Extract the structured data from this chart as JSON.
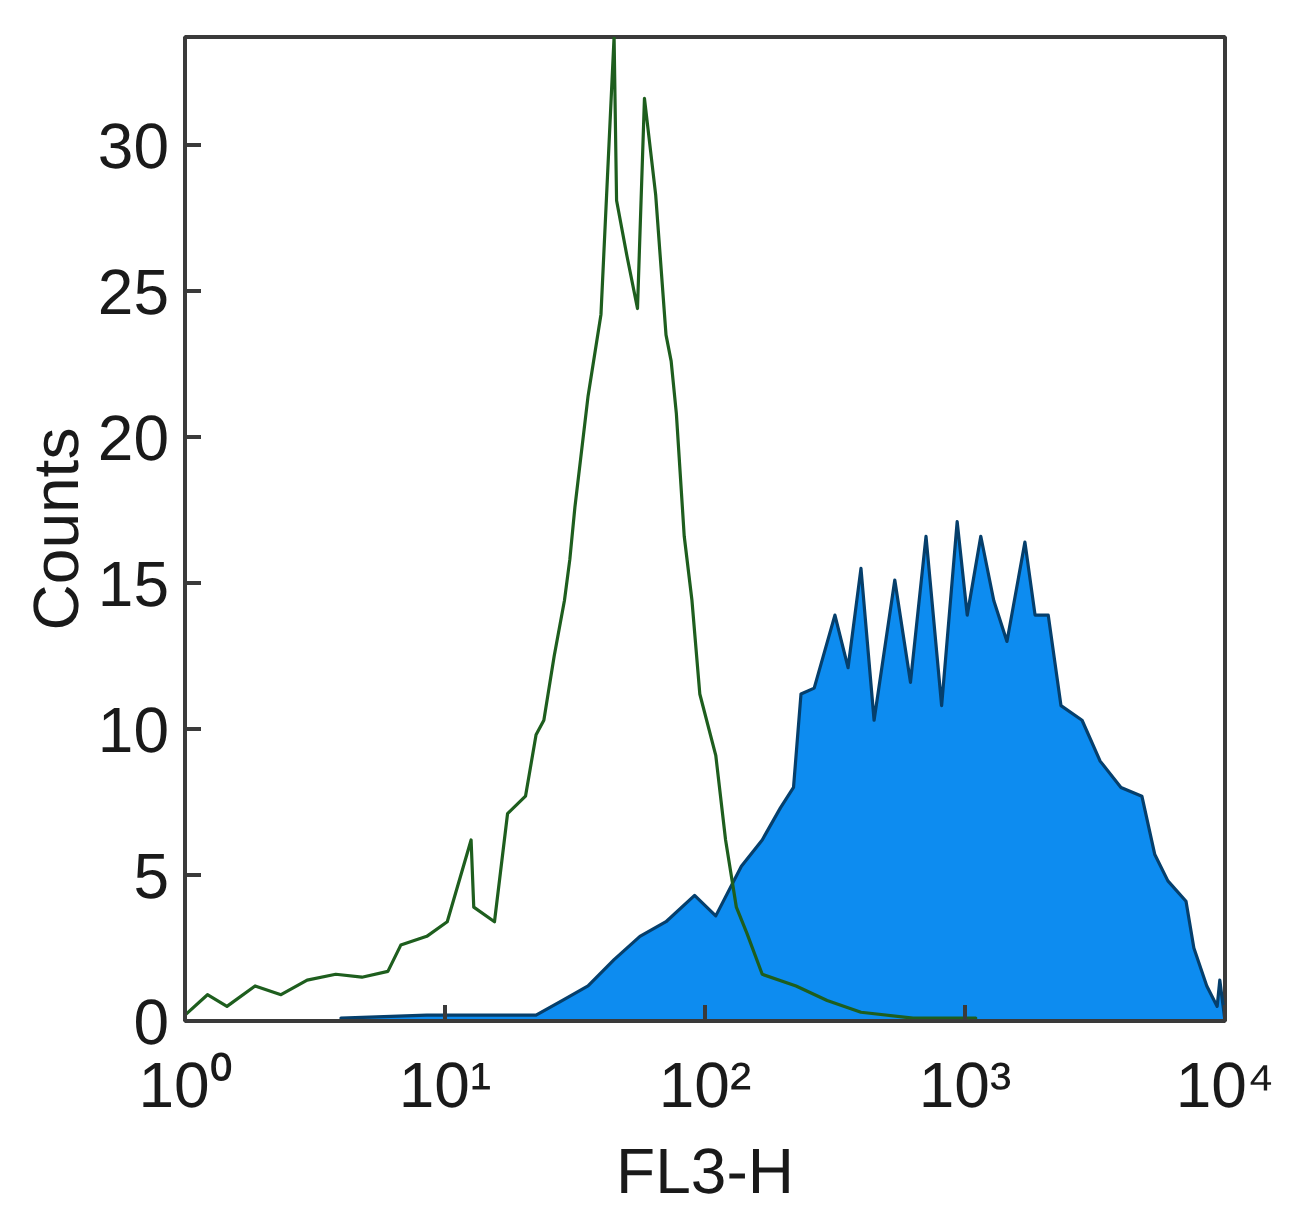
{
  "chart_data": {
    "type": "line",
    "xlabel": "FL3-H",
    "ylabel": "Counts",
    "log": "x",
    "xlim": [
      1,
      10000
    ],
    "ylim": [
      0,
      33.7
    ],
    "xticks": [
      {
        "value": 1,
        "label": "10⁰"
      },
      {
        "value": 10,
        "label": "10¹"
      },
      {
        "value": 100,
        "label": "10²"
      },
      {
        "value": 1000,
        "label": "10³"
      },
      {
        "value": 10000,
        "label": "10⁴"
      }
    ],
    "yticks": [
      0,
      5,
      10,
      15,
      20,
      25,
      30
    ],
    "grid": false,
    "marker": "none",
    "series": [
      {
        "type": "area",
        "color": "#0d8cf0",
        "x": [
          3.98,
          8.51,
          22.4,
          28.2,
          35.5,
          44.7,
          56.2,
          70.8,
          91.2,
          110,
          138,
          166,
          195,
          219,
          234,
          263,
          316,
          355,
          398,
          447,
          537,
          617,
          708,
          813,
          933,
          1020,
          1150,
          1290,
          1450,
          1700,
          1860,
          2090,
          2340,
          2820,
          3310,
          3980,
          4790,
          5370,
          6030,
          7080,
          7590,
          8510,
          9330,
          9550,
          10000
        ],
        "values": [
          0.1,
          0.2,
          0.2,
          0.7,
          1.2,
          2.1,
          2.9,
          3.4,
          4.3,
          3.6,
          5.3,
          6.2,
          7.3,
          8.0,
          11.2,
          11.4,
          13.9,
          12.1,
          15.5,
          10.3,
          15.1,
          11.6,
          16.6,
          10.8,
          17.1,
          13.9,
          16.6,
          14.4,
          13.0,
          16.4,
          13.9,
          13.9,
          10.8,
          10.3,
          8.9,
          8.0,
          7.7,
          5.7,
          4.8,
          4.1,
          2.5,
          1.2,
          0.5,
          1.4,
          0
        ]
      },
      {
        "color": "#1e5e1e",
        "x": [
          1.0,
          1.22,
          1.45,
          1.86,
          2.34,
          2.95,
          3.8,
          4.79,
          6.03,
          6.76,
          8.51,
          10.2,
          12.6,
          12.9,
          15.5,
          17.4,
          20.4,
          22.4,
          24.0,
          26.3,
          28.8,
          30.2,
          31.6,
          35.5,
          39.8,
          44.7,
          45.7,
          50.1,
          55.0,
          58.5,
          64.6,
          70.8,
          74.1,
          77.6,
          83.2,
          89.1,
          95.5,
          110,
          120,
          132,
          145,
          166,
          224,
          295,
          398,
          631,
          1100
        ],
        "values": [
          0.2,
          0.9,
          0.5,
          1.2,
          0.9,
          1.4,
          1.6,
          1.5,
          1.7,
          2.6,
          2.9,
          3.4,
          6.2,
          3.9,
          3.4,
          7.1,
          7.7,
          9.8,
          10.3,
          12.5,
          14.4,
          15.8,
          17.6,
          21.4,
          24.2,
          33.7,
          28.1,
          26.2,
          24.4,
          31.6,
          28.3,
          23.5,
          22.6,
          20.8,
          16.6,
          14.4,
          11.2,
          9.1,
          6.2,
          3.9,
          3.0,
          1.6,
          1.2,
          0.7,
          0.3,
          0.1,
          0.1
        ]
      }
    ]
  }
}
